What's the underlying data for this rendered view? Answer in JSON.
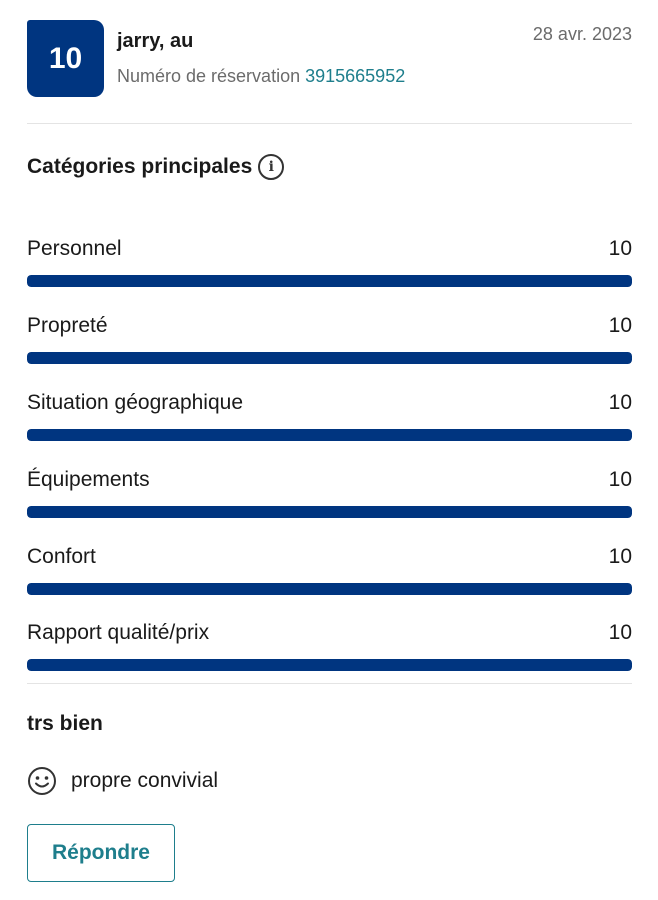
{
  "review": {
    "score": "10",
    "reviewer": "jarry, au",
    "booking_label": "Numéro de réservation",
    "booking_number": "3915665952",
    "date": "28 avr. 2023"
  },
  "categories": {
    "title": "Catégories principales",
    "items": [
      {
        "label": "Personnel",
        "score": "10",
        "value": 10
      },
      {
        "label": "Propreté",
        "score": "10",
        "value": 10
      },
      {
        "label": "Situation géographique",
        "score": "10",
        "value": 10
      },
      {
        "label": "Équipements",
        "score": "10",
        "value": 10
      },
      {
        "label": "Confort",
        "score": "10",
        "value": 10
      },
      {
        "label": "Rapport qualité/prix",
        "score": "10",
        "value": 10
      }
    ],
    "max": 10
  },
  "review_body": {
    "title": "trs bien",
    "positive": "propre convivial"
  },
  "actions": {
    "reply_label": "Répondre"
  },
  "colors": {
    "brand": "#003580",
    "link": "#1e7e8c"
  }
}
